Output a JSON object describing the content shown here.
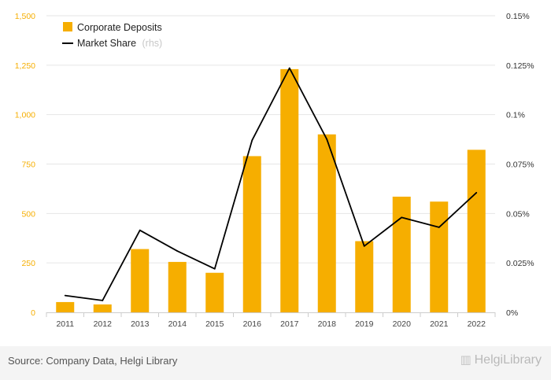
{
  "chart_data": {
    "type": "bar",
    "categories": [
      "2011",
      "2012",
      "2013",
      "2014",
      "2015",
      "2016",
      "2017",
      "2018",
      "2019",
      "2020",
      "2021",
      "2022"
    ],
    "series": [
      {
        "name": "Corporate Deposits",
        "type": "bar",
        "axis": "left",
        "color": "#f6ae00",
        "values": [
          52,
          40,
          320,
          255,
          200,
          790,
          1230,
          900,
          360,
          585,
          560,
          822
        ]
      },
      {
        "name": "Market Share",
        "type": "line",
        "axis": "right",
        "color": "#000000",
        "values": [
          0.0085,
          0.006,
          0.0415,
          0.031,
          0.022,
          0.087,
          0.1235,
          0.0875,
          0.0335,
          0.048,
          0.043,
          0.0605
        ]
      }
    ],
    "y_left": {
      "min": 0,
      "max": 1500,
      "ticks": [
        0,
        250,
        500,
        750,
        1000,
        1250,
        1500
      ],
      "tick_labels": [
        "0",
        "250",
        "500",
        "750",
        "1,000",
        "1,250",
        "1,500"
      ]
    },
    "y_right": {
      "min": 0,
      "max": 0.15,
      "ticks": [
        0,
        0.025,
        0.05,
        0.075,
        0.1,
        0.125,
        0.15
      ],
      "tick_labels": [
        "0%",
        "0.025%",
        "0.05%",
        "0.075%",
        "0.1%",
        "0.125%",
        "0.15%"
      ]
    },
    "legend": {
      "position": "top-left",
      "items": [
        {
          "label": "Corporate Deposits",
          "suffix": ""
        },
        {
          "label": "Market Share",
          "suffix": "(rhs)"
        }
      ]
    },
    "grid": true,
    "left_tick_color": "#f6ae00",
    "right_tick_color": "#333333"
  },
  "footer": {
    "source": "Source: Company Data, Helgi Library",
    "logo": "HelgiLibrary",
    "logo_icon": "library-building-icon"
  }
}
